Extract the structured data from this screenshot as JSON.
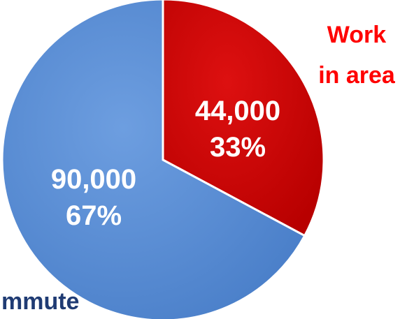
{
  "chart_data": {
    "type": "pie",
    "slices": [
      {
        "name": "Work in area",
        "name_lines": [
          "Work",
          "in area"
        ],
        "value": 44000,
        "value_label": "44,000",
        "percent_label": "33%",
        "percent": 33,
        "color": "#cc0000",
        "label_color": "#ff0000"
      },
      {
        "name": "mmute",
        "name_lines": [
          "mmute"
        ],
        "value": 90000,
        "value_label": "90,000",
        "percent_label": "67%",
        "percent": 67,
        "color": "#5b8fd4",
        "label_color": "#1f3b73"
      }
    ],
    "legend": "none",
    "title": ""
  }
}
